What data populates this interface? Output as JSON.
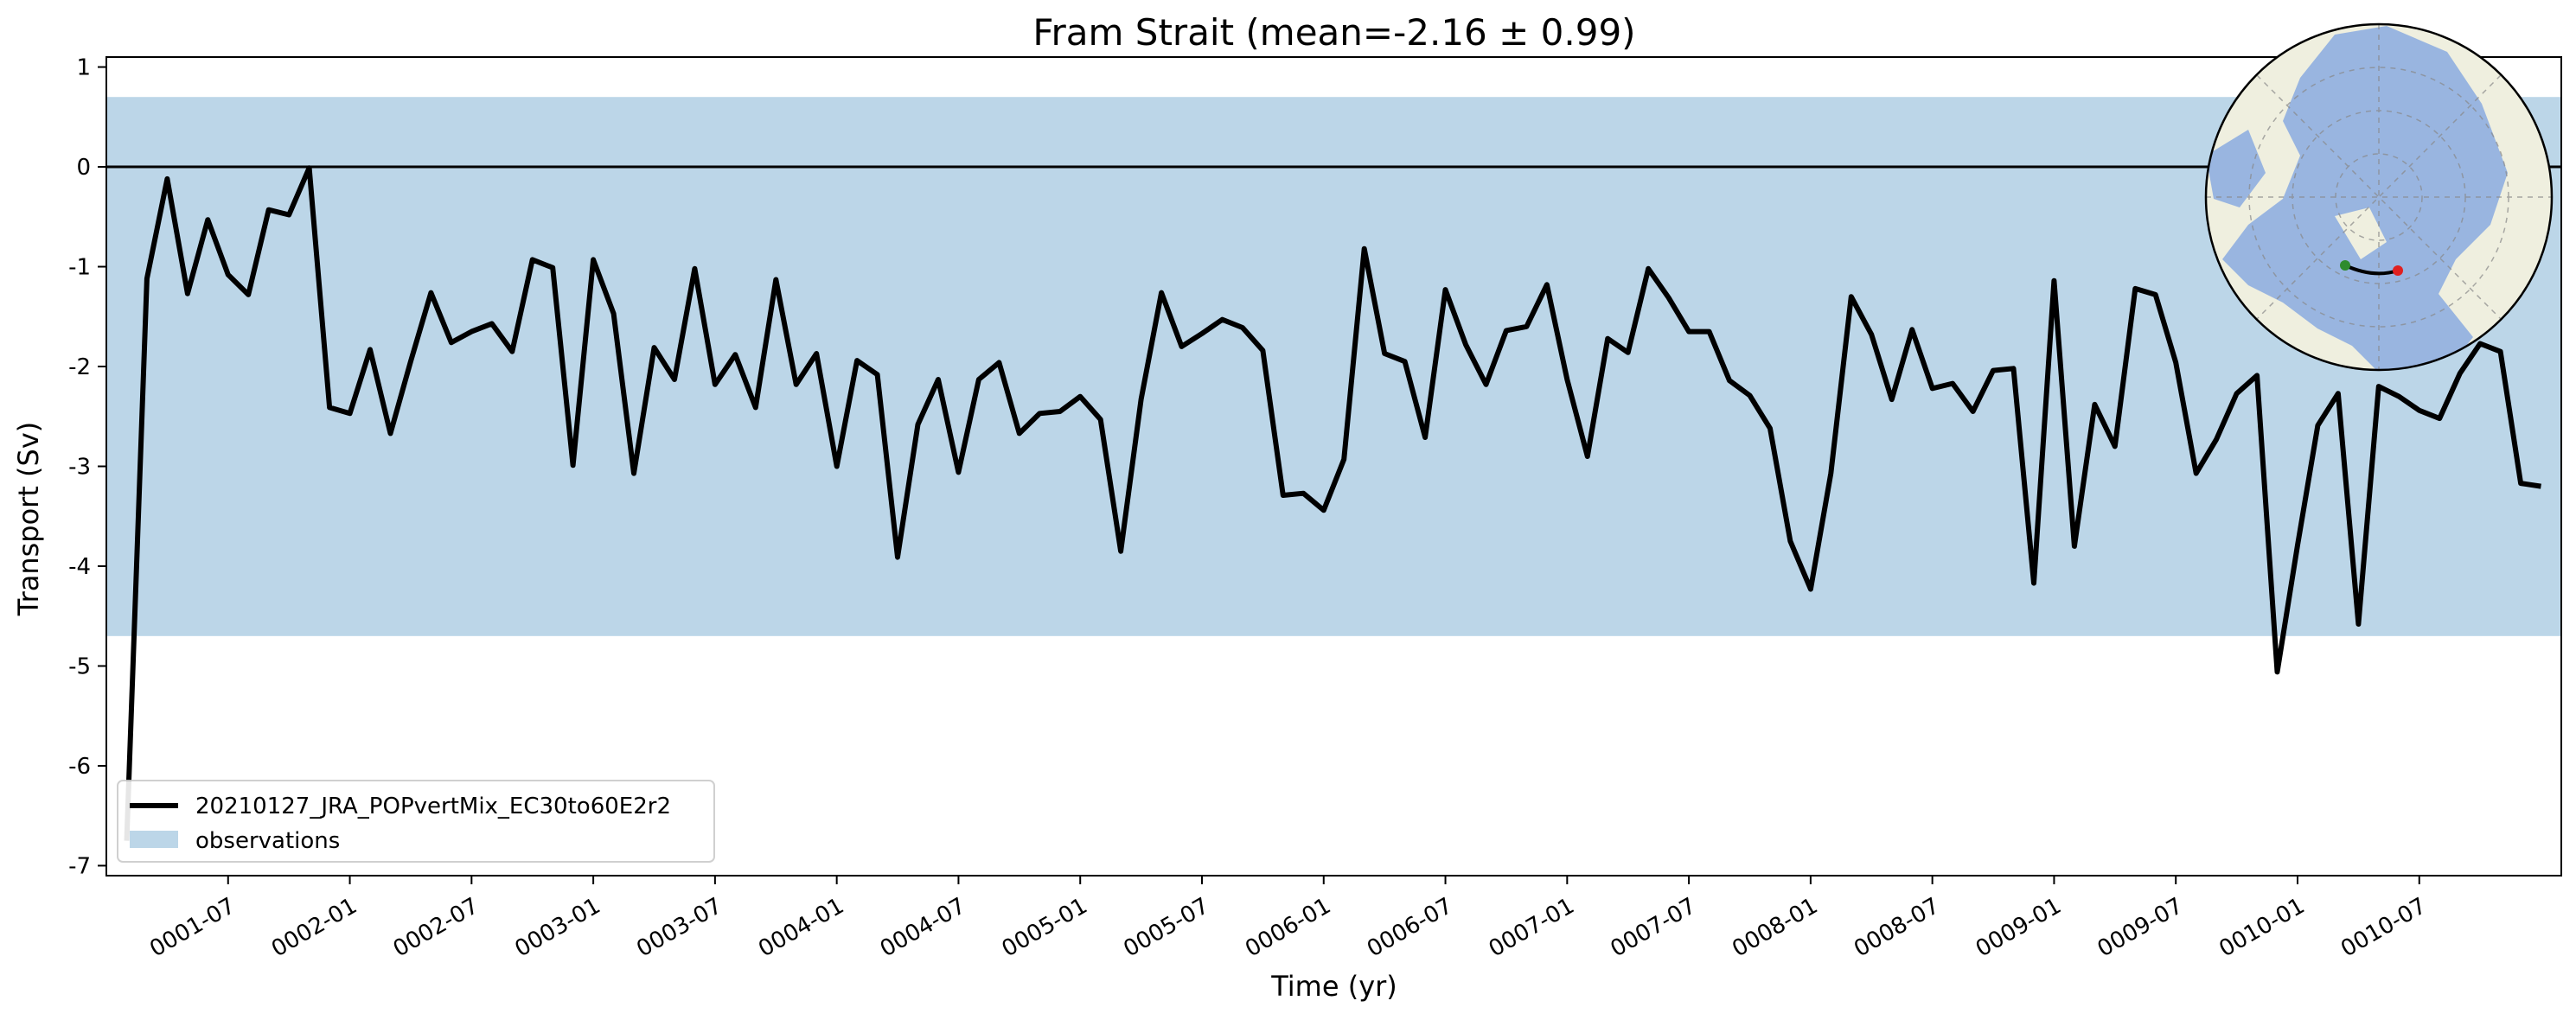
{
  "chart_data": {
    "type": "line",
    "title": "Fram Strait (mean=-2.16 ± 0.99)",
    "xlabel": "Time (yr)",
    "ylabel": "Transport (Sv)",
    "ylim": [
      -7.1,
      1.1
    ],
    "yticks": [
      1,
      0,
      -1,
      -2,
      -3,
      -4,
      -5,
      -6,
      -7
    ],
    "xlim": [
      0,
      121
    ],
    "xticks": [
      {
        "label": "0001-07",
        "month": 6
      },
      {
        "label": "0002-01",
        "month": 12
      },
      {
        "label": "0002-07",
        "month": 18
      },
      {
        "label": "0003-01",
        "month": 24
      },
      {
        "label": "0003-07",
        "month": 30
      },
      {
        "label": "0004-01",
        "month": 36
      },
      {
        "label": "0004-07",
        "month": 42
      },
      {
        "label": "0005-01",
        "month": 48
      },
      {
        "label": "0005-07",
        "month": 54
      },
      {
        "label": "0006-01",
        "month": 60
      },
      {
        "label": "0006-07",
        "month": 66
      },
      {
        "label": "0007-01",
        "month": 72
      },
      {
        "label": "0007-07",
        "month": 78
      },
      {
        "label": "0008-01",
        "month": 84
      },
      {
        "label": "0008-07",
        "month": 90
      },
      {
        "label": "0009-01",
        "month": 96
      },
      {
        "label": "0009-07",
        "month": 102
      },
      {
        "label": "0010-01",
        "month": 108
      },
      {
        "label": "0010-07",
        "month": 114
      }
    ],
    "series": [
      {
        "name": "20210127_JRA_POPvertMix_EC30to60E2r2",
        "color": "#000000",
        "values": [
          -6.75,
          -1.12,
          -0.12,
          -1.27,
          -0.53,
          -1.08,
          -1.28,
          -0.43,
          -0.48,
          -0.01,
          -2.41,
          -2.47,
          -1.83,
          -2.67,
          -1.95,
          -1.26,
          -1.76,
          -1.65,
          -1.57,
          -1.85,
          -0.93,
          -1.01,
          -2.99,
          -0.93,
          -1.47,
          -3.07,
          -1.81,
          -2.13,
          -1.02,
          -2.18,
          -1.88,
          -2.41,
          -1.13,
          -2.18,
          -1.87,
          -3.0,
          -1.94,
          -2.08,
          -3.91,
          -2.58,
          -2.13,
          -3.06,
          -2.13,
          -1.96,
          -2.67,
          -2.47,
          -2.45,
          -2.3,
          -2.53,
          -3.85,
          -2.33,
          -1.26,
          -1.8,
          -1.67,
          -1.53,
          -1.61,
          -1.84,
          -3.29,
          -3.27,
          -3.44,
          -2.93,
          -0.82,
          -1.87,
          -1.95,
          -2.71,
          -1.23,
          -1.78,
          -2.18,
          -1.64,
          -1.6,
          -1.18,
          -2.13,
          -2.9,
          -1.72,
          -1.86,
          -1.02,
          -1.31,
          -1.65,
          -1.65,
          -2.14,
          -2.29,
          -2.62,
          -3.75,
          -4.23,
          -3.07,
          -1.3,
          -1.68,
          -2.33,
          -1.63,
          -2.22,
          -2.17,
          -2.45,
          -2.04,
          -2.02,
          -4.17,
          -1.14,
          -3.8,
          -2.38,
          -2.8,
          -1.22,
          -1.28,
          -1.96,
          -3.07,
          -2.73,
          -2.27,
          -2.09,
          -5.06,
          -3.79,
          -2.59,
          -2.27,
          -4.58,
          -2.2,
          -2.3,
          -2.44,
          -2.52,
          -2.07,
          -1.77,
          -1.85,
          -3.17,
          -3.2
        ]
      }
    ],
    "observations": {
      "name": "observations",
      "range": [
        -4.7,
        0.7
      ],
      "color": "#bcd6e8"
    },
    "zero_line": 0,
    "legend": {
      "placement": "lower-left"
    },
    "grid": false,
    "inset": {
      "description_icon": "arctic-polar-map-icon",
      "land_color": "#efefdf",
      "ocean_color": "#99b5e0"
    }
  }
}
